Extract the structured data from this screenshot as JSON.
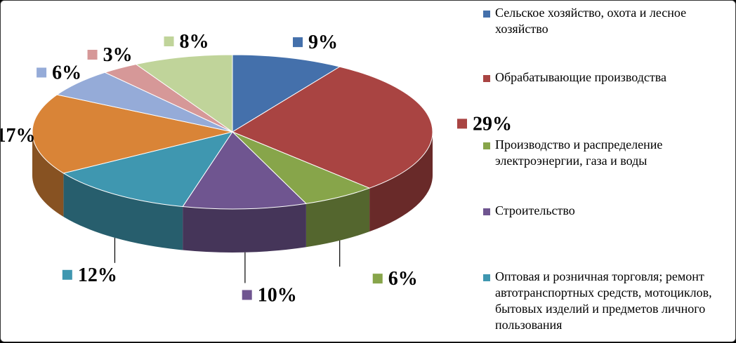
{
  "chart_data": {
    "type": "pie",
    "title": "",
    "categories": [
      "Сельское хозяйство, охота и лесное хозяйство",
      "Обрабатывающие производства",
      "Производство и распределение электроэнергии,  газа и воды",
      "Строительство",
      "Оптовая и розничная торговля; ремонт автотранспортных средств, мотоциклов, бытовых изделий и предметов личного пользования",
      "",
      "",
      "",
      ""
    ],
    "values": [
      9,
      29,
      6,
      10,
      12,
      17,
      6,
      3,
      8
    ],
    "labels": [
      "9%",
      "29%",
      "6%",
      "10%",
      "12%",
      "17%",
      "6%",
      "3%",
      "8%"
    ],
    "colors": [
      "#4470AB",
      "#A94442",
      "#87A54A",
      "#6F5590",
      "#3F97B0",
      "#D98437",
      "#95ABD8",
      "#D69898",
      "#C0D49A"
    ],
    "legend": "right"
  }
}
